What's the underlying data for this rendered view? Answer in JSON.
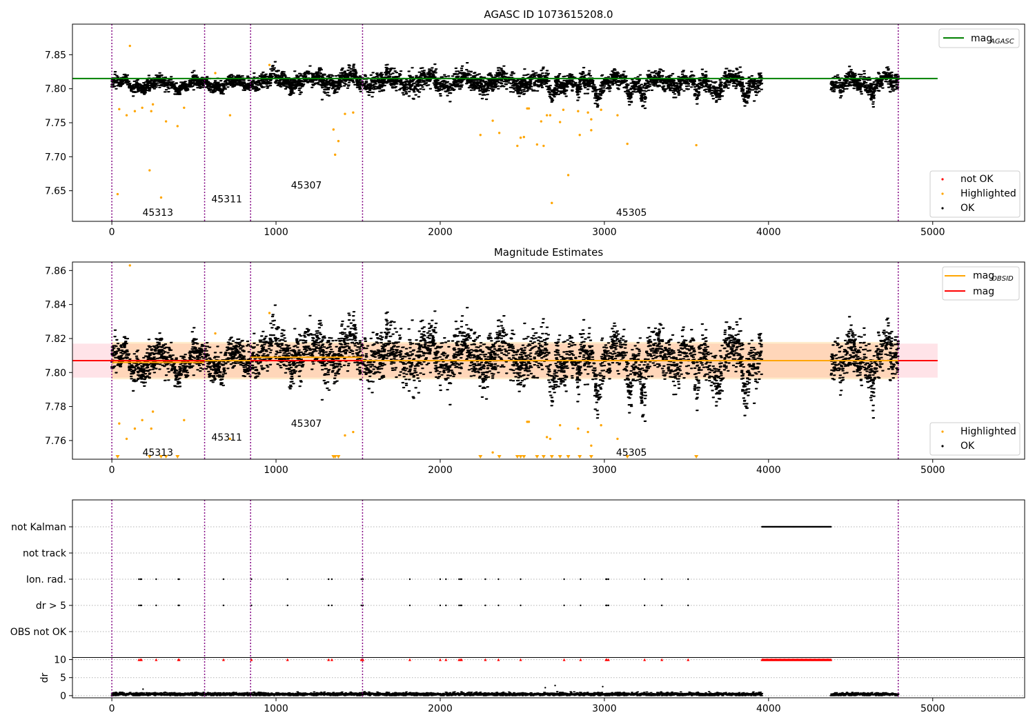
{
  "chart_data": [
    {
      "type": "scatter",
      "title": "AGASC ID 1073615208.0",
      "xlim": [
        -240,
        5560
      ],
      "ylim": [
        7.605,
        7.895
      ],
      "x_ticks": [
        0,
        1000,
        2000,
        3000,
        4000,
        5000
      ],
      "y_ticks": [
        7.65,
        7.7,
        7.75,
        7.8,
        7.85
      ],
      "y_tick_labels": [
        "7.65",
        "7.70",
        "7.75",
        "7.80",
        "7.85"
      ],
      "xlabel": "",
      "ylabel": "",
      "obsid_boundaries": [
        0,
        565,
        845,
        1527,
        4790
      ],
      "obsid_labels": [
        {
          "text": "45313",
          "x": 280,
          "y": 7.618
        },
        {
          "text": "45311",
          "x": 700,
          "y": 7.638
        },
        {
          "text": "45307",
          "x": 1185,
          "y": 7.658
        },
        {
          "text": "45305",
          "x": 3165,
          "y": 7.618
        }
      ],
      "lines": [
        {
          "name": "mag_AGASC",
          "label_base": "mag",
          "label_sub": "AGASC",
          "y": 7.815,
          "x_range": [
            -240,
            5030
          ],
          "color": "#008000"
        }
      ],
      "legends": [
        {
          "position": "upper right",
          "entries": [
            {
              "type": "line",
              "label": "mag",
              "sub": "AGASC",
              "color": "#008000"
            }
          ]
        },
        {
          "position": "lower right",
          "entries": [
            {
              "type": "point",
              "label": "not OK",
              "color": "#ff0000"
            },
            {
              "type": "point",
              "label": "Highlighted",
              "color": "#ffa500"
            },
            {
              "type": "point",
              "label": "OK",
              "color": "#000000"
            }
          ]
        }
      ],
      "series": [
        {
          "name": "OK",
          "color": "#000000",
          "kind": "dense_band",
          "segments": [
            {
              "x_range": [
                0,
                565
              ],
              "center": 7.806,
              "spread": 0.012
            },
            {
              "x_range": [
                565,
                845
              ],
              "center": 7.807,
              "spread": 0.012
            },
            {
              "x_range": [
                845,
                1527
              ],
              "center": 7.812,
              "spread": 0.016
            },
            {
              "x_range": [
                1527,
                3960
              ],
              "center": 7.81,
              "spread": 0.018
            },
            {
              "x_range": [
                4380,
                4790
              ],
              "center": 7.81,
              "spread": 0.018
            }
          ],
          "dips": [
            2680,
            2840,
            2960,
            3150,
            3240,
            3560,
            3690,
            3860,
            4450,
            4640
          ]
        },
        {
          "name": "Highlighted",
          "color": "#ffa500",
          "points": [
            [
              35,
              7.645
            ],
            [
              45,
              7.77
            ],
            [
              90,
              7.761
            ],
            [
              110,
              7.863
            ],
            [
              140,
              7.767
            ],
            [
              185,
              7.772
            ],
            [
              230,
              7.68
            ],
            [
              240,
              7.767
            ],
            [
              250,
              7.777
            ],
            [
              300,
              7.64
            ],
            [
              330,
              7.752
            ],
            [
              400,
              7.745
            ],
            [
              440,
              7.772
            ],
            [
              630,
              7.823
            ],
            [
              720,
              7.761
            ],
            [
              960,
              7.835
            ],
            [
              1350,
              7.74
            ],
            [
              1360,
              7.703
            ],
            [
              1380,
              7.723
            ],
            [
              1420,
              7.763
            ],
            [
              1470,
              7.765
            ],
            [
              2245,
              7.732
            ],
            [
              2320,
              7.753
            ],
            [
              2360,
              7.735
            ],
            [
              2470,
              7.716
            ],
            [
              2490,
              7.728
            ],
            [
              2510,
              7.729
            ],
            [
              2530,
              7.771
            ],
            [
              2540,
              7.771
            ],
            [
              2590,
              7.718
            ],
            [
              2615,
              7.752
            ],
            [
              2630,
              7.716
            ],
            [
              2650,
              7.761
            ],
            [
              2670,
              7.761
            ],
            [
              2680,
              7.632
            ],
            [
              2730,
              7.751
            ],
            [
              2750,
              7.769
            ],
            [
              2780,
              7.673
            ],
            [
              2840,
              7.767
            ],
            [
              2850,
              7.732
            ],
            [
              2900,
              7.765
            ],
            [
              2920,
              7.755
            ],
            [
              2920,
              7.739
            ],
            [
              2980,
              7.769
            ],
            [
              3080,
              7.761
            ],
            [
              3140,
              7.719
            ],
            [
              3560,
              7.717
            ]
          ]
        }
      ]
    },
    {
      "type": "scatter",
      "title": "Magnitude Estimates",
      "xlim": [
        -240,
        5560
      ],
      "ylim": [
        7.749,
        7.865
      ],
      "x_ticks": [
        0,
        1000,
        2000,
        3000,
        4000,
        5000
      ],
      "y_ticks": [
        7.76,
        7.78,
        7.8,
        7.82,
        7.84,
        7.86
      ],
      "y_tick_labels": [
        "7.76",
        "7.78",
        "7.80",
        "7.82",
        "7.84",
        "7.86"
      ],
      "xlabel": "",
      "ylabel": "",
      "obsid_boundaries": [
        0,
        565,
        845,
        1527,
        4790
      ],
      "obsid_labels": [
        {
          "text": "45313",
          "x": 280,
          "y": 7.753
        },
        {
          "text": "45311",
          "x": 700,
          "y": 7.762
        },
        {
          "text": "45307",
          "x": 1185,
          "y": 7.77
        },
        {
          "text": "45305",
          "x": 3165,
          "y": 7.753
        }
      ],
      "bands": [
        {
          "name": "mag_band",
          "y_range": [
            7.797,
            7.817
          ],
          "x_range": [
            -240,
            5030
          ],
          "color": "#ffc0cb",
          "opacity": 0.45
        },
        {
          "name": "mag_OBSID_band",
          "y_range": [
            7.796,
            7.818
          ],
          "x_range": [
            0,
            4790
          ],
          "color": "#ffa500",
          "opacity": 0.2
        }
      ],
      "lines": [
        {
          "name": "mag",
          "y": 7.807,
          "x_range": [
            -240,
            5030
          ],
          "color": "#ff0000"
        },
        {
          "name": "mag_OBSID",
          "color": "#ffa500",
          "steps": [
            [
              0,
              565,
              7.806
            ],
            [
              565,
              845,
              7.807
            ],
            [
              845,
              1527,
              7.809
            ],
            [
              1527,
              4790,
              7.807
            ]
          ]
        }
      ],
      "legends": [
        {
          "position": "upper right",
          "entries": [
            {
              "type": "line",
              "label": "mag",
              "sub": "OBSID",
              "color": "#ffa500"
            },
            {
              "type": "line",
              "label": "mag",
              "sub": "",
              "color": "#ff0000"
            }
          ]
        },
        {
          "position": "lower right",
          "entries": [
            {
              "type": "point",
              "label": "Highlighted",
              "color": "#ffa500"
            },
            {
              "type": "point",
              "label": "OK",
              "color": "#000000"
            }
          ]
        }
      ],
      "series": [
        {
          "name": "OK",
          "color": "#000000",
          "kind": "dense_band",
          "segments": [
            {
              "x_range": [
                0,
                565
              ],
              "center": 7.806,
              "spread": 0.012
            },
            {
              "x_range": [
                565,
                845
              ],
              "center": 7.807,
              "spread": 0.012
            },
            {
              "x_range": [
                845,
                1527
              ],
              "center": 7.812,
              "spread": 0.016
            },
            {
              "x_range": [
                1527,
                3960
              ],
              "center": 7.81,
              "spread": 0.018
            },
            {
              "x_range": [
                4380,
                4790
              ],
              "center": 7.81,
              "spread": 0.018
            }
          ],
          "dips": [
            2680,
            2840,
            2960,
            3150,
            3240,
            3560,
            3690,
            3860,
            4450,
            4640
          ]
        },
        {
          "name": "Highlighted",
          "color": "#ffa500",
          "points": [
            [
              45,
              7.77
            ],
            [
              90,
              7.761
            ],
            [
              110,
              7.863
            ],
            [
              140,
              7.767
            ],
            [
              185,
              7.772
            ],
            [
              240,
              7.767
            ],
            [
              250,
              7.777
            ],
            [
              440,
              7.772
            ],
            [
              630,
              7.823
            ],
            [
              720,
              7.761
            ],
            [
              960,
              7.835
            ],
            [
              1420,
              7.763
            ],
            [
              1470,
              7.765
            ],
            [
              2320,
              7.753
            ],
            [
              2530,
              7.771
            ],
            [
              2540,
              7.771
            ],
            [
              2650,
              7.762
            ],
            [
              2670,
              7.761
            ],
            [
              2730,
              7.769
            ],
            [
              2840,
              7.767
            ],
            [
              2900,
              7.765
            ],
            [
              2920,
              7.757
            ],
            [
              2980,
              7.769
            ],
            [
              3080,
              7.761
            ]
          ]
        },
        {
          "name": "Highlighted (clipped)",
          "color": "#ffa500",
          "marker": "triangle-down",
          "x": [
            35,
            230,
            300,
            330,
            400,
            1350,
            1360,
            1380,
            2245,
            2360,
            2470,
            2490,
            2510,
            2590,
            2630,
            2680,
            2730,
            2780,
            2850,
            2920,
            3140,
            3560
          ]
        }
      ]
    },
    {
      "type": "scatter",
      "title": "",
      "xlim": [
        -240,
        5560
      ],
      "x_ticks": [
        0,
        1000,
        2000,
        3000,
        4000,
        5000
      ],
      "obsid_boundaries": [
        0,
        565,
        845,
        1527,
        4790
      ],
      "categories": [
        "not Kalman",
        "not track",
        "Ion. rad.",
        "dr > 5",
        "OBS not OK"
      ],
      "flag_markers": [
        {
          "category": "not Kalman",
          "x_range": [
            3960,
            4380
          ]
        },
        {
          "category": "Ion. rad.",
          "x": [
            165,
            175,
            180,
            270,
            405,
            410,
            680,
            850,
            1070,
            1320,
            1340,
            1520,
            1530,
            1815,
            2000,
            2035,
            2115,
            2125,
            2130,
            2275,
            2355,
            2490,
            2755,
            2855,
            3010,
            3015,
            3025,
            3245,
            3350,
            3510
          ]
        },
        {
          "category": "dr > 5",
          "x": [
            165,
            175,
            180,
            270,
            405,
            410,
            680,
            850,
            1070,
            1320,
            1340,
            1520,
            1530,
            1815,
            2000,
            2035,
            2115,
            2125,
            2130,
            2275,
            2355,
            2490,
            2755,
            2855,
            3010,
            3015,
            3025,
            3245,
            3350,
            3510
          ]
        }
      ],
      "dr_panel": {
        "ylabel": "dr",
        "y_ticks": [
          0,
          5,
          10
        ],
        "y_tick_labels": [
          "0",
          "5",
          "10"
        ],
        "ylim": [
          -0.6,
          10.3
        ],
        "clipped_x": [
          165,
          175,
          180,
          270,
          405,
          410,
          680,
          850,
          1070,
          1320,
          1340,
          1520,
          1530,
          1815,
          2000,
          2035,
          2115,
          2125,
          2130,
          2275,
          2355,
          2490,
          2755,
          2855,
          3010,
          3015,
          3025,
          3245,
          3350,
          3510
        ],
        "clipped_range": [
          3960,
          4380
        ],
        "outliers": [
          [
            190,
            1.8
          ],
          [
            2640,
            2.2
          ],
          [
            2700,
            2.8
          ],
          [
            2990,
            2.5
          ]
        ],
        "segments": [
          [
            0,
            3960
          ],
          [
            4380,
            4790
          ]
        ],
        "typical": 0.4
      }
    }
  ]
}
